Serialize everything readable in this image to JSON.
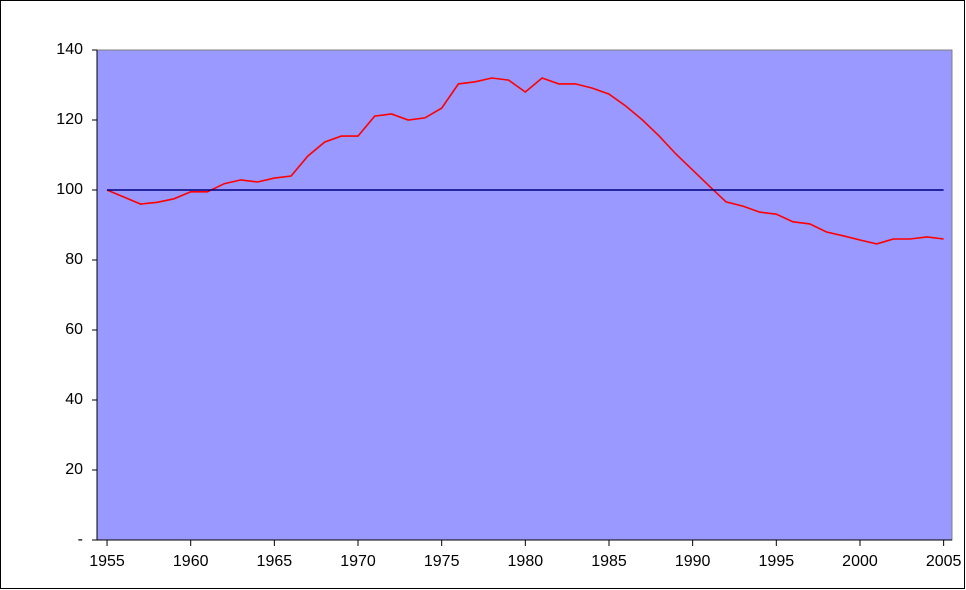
{
  "chart_data": {
    "type": "line",
    "x": [
      1955,
      1956,
      1957,
      1958,
      1959,
      1960,
      1961,
      1962,
      1963,
      1964,
      1965,
      1966,
      1967,
      1968,
      1969,
      1970,
      1971,
      1972,
      1973,
      1974,
      1975,
      1976,
      1977,
      1978,
      1979,
      1980,
      1981,
      1982,
      1983,
      1984,
      1985,
      1986,
      1987,
      1988,
      1989,
      1990,
      1991,
      1992,
      1993,
      1994,
      1995,
      1996,
      1997,
      1998,
      1999,
      2000,
      2001,
      2002,
      2003,
      2004,
      2005
    ],
    "series": [
      {
        "color": "#ff0000",
        "values": [
          100,
          98,
          96,
          96.5,
          97.5,
          99.5,
          99.5,
          101.8,
          102.9,
          102.3,
          103.4,
          104,
          109.7,
          113.7,
          115.4,
          115.4,
          121.1,
          121.7,
          120,
          120.6,
          123.4,
          130.3,
          130.9,
          132,
          131.4,
          128,
          132,
          130.3,
          130.3,
          129.1,
          127.4,
          124,
          120,
          115.4,
          110.3,
          105.7,
          101.1,
          96.6,
          95.4,
          93.7,
          93.1,
          90.9,
          90.3,
          88,
          86.9,
          85.7,
          84.6,
          86,
          86,
          86.6,
          86
        ]
      },
      {
        "color": "#000080",
        "values": [
          100,
          100,
          100,
          100,
          100,
          100,
          100,
          100,
          100,
          100,
          100,
          100,
          100,
          100,
          100,
          100,
          100,
          100,
          100,
          100,
          100,
          100,
          100,
          100,
          100,
          100,
          100,
          100,
          100,
          100,
          100,
          100,
          100,
          100,
          100,
          100,
          100,
          100,
          100,
          100,
          100,
          100,
          100,
          100,
          100,
          100,
          100,
          100,
          100,
          100,
          100
        ]
      }
    ],
    "xlim": [
      1954.4,
      2005.5
    ],
    "xticks": [
      1955,
      1960,
      1965,
      1970,
      1975,
      1980,
      1985,
      1990,
      1995,
      2000,
      2005
    ],
    "ylim": [
      0,
      140
    ],
    "yticks": [
      {
        "value": 0,
        "label": "-"
      },
      20,
      40,
      60,
      80,
      100,
      120,
      140
    ],
    "plot_background": "#9999ff"
  }
}
